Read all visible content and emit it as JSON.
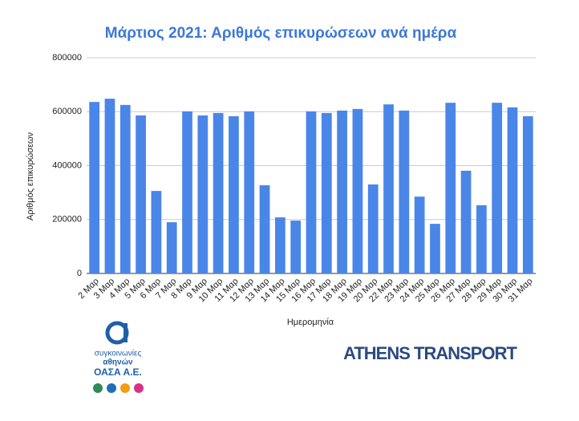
{
  "chart_data": {
    "type": "bar",
    "title": "Μάρτιος 2021: Αριθμός επικυρώσεων ανά ημέρα",
    "x_label": "Ημερομηνία",
    "y_label": "Αριθμός επικυρώσεων",
    "categories": [
      "2 Μαρ",
      "3 Μαρ",
      "4 Μαρ",
      "5 Μαρ",
      "6 Μαρ",
      "7 Μαρ",
      "8 Μαρ",
      "9 Μαρ",
      "10 Μαρ",
      "11 Μαρ",
      "12 Μαρ",
      "13 Μαρ",
      "14 Μαρ",
      "15 Μαρ",
      "16 Μαρ",
      "17 Μαρ",
      "18 Μαρ",
      "19 Μαρ",
      "20 Μαρ",
      "22 Μαρ",
      "23 Μαρ",
      "24 Μαρ",
      "25 Μαρ",
      "26 Μαρ",
      "27 Μαρ",
      "28 Μαρ",
      "29 Μαρ",
      "30 Μαρ",
      "31 Μαρ"
    ],
    "values": [
      636000,
      648000,
      625000,
      586000,
      306000,
      190000,
      601000,
      586000,
      595000,
      583000,
      601000,
      327000,
      208000,
      196000,
      601000,
      595000,
      604000,
      610000,
      330000,
      627000,
      604000,
      285000,
      184000,
      633000,
      381000,
      253000,
      633000,
      616000,
      583000
    ],
    "color": "#4a86e8",
    "ylim": [
      0,
      800000
    ],
    "yticks": [
      0,
      200000,
      400000,
      600000,
      800000
    ],
    "grid": true
  },
  "logos": {
    "oasa_line1": "συγκοινωνίες",
    "oasa_line2": "αθηνών",
    "oasa_name": "ΟΑΣΑ Α.Ε.",
    "athens": "ATHENS TRANSPORT"
  }
}
